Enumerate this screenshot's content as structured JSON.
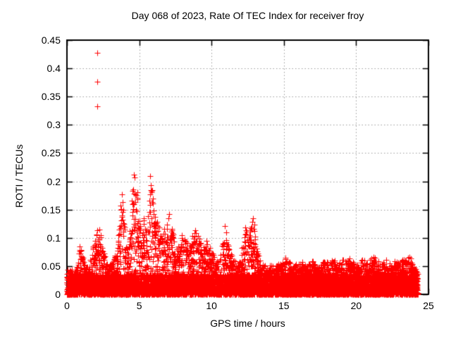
{
  "page": {
    "background": "#ffffff"
  },
  "chart_data": {
    "type": "scatter",
    "title": "Day 068 of 2023, Rate Of TEC Index for receiver froy",
    "xlabel": "GPS time / hours",
    "ylabel": "ROTI / TECUs",
    "xlim": [
      0,
      25
    ],
    "ylim": [
      0,
      0.45
    ],
    "x_ticks": [
      0,
      5,
      10,
      15,
      20,
      25
    ],
    "x_tick_labels": [
      "0",
      "5",
      "10",
      "15",
      "20",
      "25"
    ],
    "y_ticks": [
      0,
      0.05,
      0.1,
      0.15,
      0.2,
      0.25,
      0.3,
      0.35,
      0.4,
      0.45
    ],
    "y_tick_labels": [
      "0",
      "0.05",
      "0.1",
      "0.15",
      "0.2",
      "0.25",
      "0.3",
      "0.35",
      "0.4",
      "0.45"
    ],
    "grid": "dotted",
    "legend": "none",
    "marker": {
      "shape": "plus",
      "color": "#ff0000",
      "size": 9
    },
    "colors": {
      "marker": "#ff0000",
      "axis": "#000000",
      "grid": "#9a9a9a",
      "text": "#000000",
      "background": "#ffffff"
    },
    "outliers": [
      [
        2.1,
        0.428
      ],
      [
        2.1,
        0.377
      ],
      [
        2.1,
        0.333
      ]
    ],
    "time_range": [
      0,
      24.25
    ],
    "epoch_step_hours": 0.008,
    "base_band_max": 0.035,
    "points_seed": 20230068,
    "envelope": [
      [
        0.0,
        0.05
      ],
      [
        0.15,
        0.04
      ],
      [
        0.3,
        0.03
      ],
      [
        0.5,
        0.032
      ],
      [
        0.7,
        0.05
      ],
      [
        0.85,
        0.088
      ],
      [
        1.0,
        0.08
      ],
      [
        1.15,
        0.06
      ],
      [
        1.3,
        0.05
      ],
      [
        1.5,
        0.048
      ],
      [
        1.7,
        0.075
      ],
      [
        1.9,
        0.102
      ],
      [
        2.05,
        0.112
      ],
      [
        2.2,
        0.125
      ],
      [
        2.35,
        0.11
      ],
      [
        2.5,
        0.09
      ],
      [
        2.7,
        0.06
      ],
      [
        2.9,
        0.05
      ],
      [
        3.1,
        0.056
      ],
      [
        3.3,
        0.066
      ],
      [
        3.5,
        0.09
      ],
      [
        3.7,
        0.16
      ],
      [
        3.8,
        0.193
      ],
      [
        3.9,
        0.155
      ],
      [
        4.05,
        0.09
      ],
      [
        4.2,
        0.08
      ],
      [
        4.35,
        0.12
      ],
      [
        4.5,
        0.18
      ],
      [
        4.65,
        0.231
      ],
      [
        4.8,
        0.205
      ],
      [
        4.95,
        0.14
      ],
      [
        5.1,
        0.12
      ],
      [
        5.3,
        0.148
      ],
      [
        5.45,
        0.11
      ],
      [
        5.6,
        0.13
      ],
      [
        5.75,
        0.218
      ],
      [
        5.9,
        0.185
      ],
      [
        6.05,
        0.155
      ],
      [
        6.2,
        0.14
      ],
      [
        6.35,
        0.125
      ],
      [
        6.5,
        0.105
      ],
      [
        6.7,
        0.12
      ],
      [
        6.9,
        0.112
      ],
      [
        7.1,
        0.165
      ],
      [
        7.25,
        0.13
      ],
      [
        7.4,
        0.1
      ],
      [
        7.55,
        0.085
      ],
      [
        7.7,
        0.09
      ],
      [
        7.85,
        0.1
      ],
      [
        8.0,
        0.108
      ],
      [
        8.2,
        0.1
      ],
      [
        8.4,
        0.095
      ],
      [
        8.6,
        0.1
      ],
      [
        8.8,
        0.115
      ],
      [
        9.0,
        0.142
      ],
      [
        9.15,
        0.115
      ],
      [
        9.3,
        0.09
      ],
      [
        9.5,
        0.085
      ],
      [
        9.65,
        0.1
      ],
      [
        9.8,
        0.088
      ],
      [
        10.0,
        0.077
      ],
      [
        10.2,
        0.066
      ],
      [
        10.4,
        0.06
      ],
      [
        10.6,
        0.07
      ],
      [
        10.8,
        0.1
      ],
      [
        10.95,
        0.126
      ],
      [
        11.1,
        0.1
      ],
      [
        11.3,
        0.08
      ],
      [
        11.5,
        0.066
      ],
      [
        11.7,
        0.06
      ],
      [
        11.9,
        0.068
      ],
      [
        12.1,
        0.085
      ],
      [
        12.3,
        0.122
      ],
      [
        12.5,
        0.105
      ],
      [
        12.7,
        0.13
      ],
      [
        12.8,
        0.148
      ],
      [
        12.95,
        0.125
      ],
      [
        13.1,
        0.09
      ],
      [
        13.25,
        0.07
      ],
      [
        13.4,
        0.06
      ],
      [
        13.6,
        0.055
      ],
      [
        13.8,
        0.05
      ],
      [
        14.0,
        0.056
      ],
      [
        14.25,
        0.05
      ],
      [
        14.5,
        0.054
      ],
      [
        14.75,
        0.058
      ],
      [
        15.0,
        0.06
      ],
      [
        15.2,
        0.073
      ],
      [
        15.4,
        0.06
      ],
      [
        15.6,
        0.05
      ],
      [
        15.8,
        0.056
      ],
      [
        16.0,
        0.052
      ],
      [
        16.2,
        0.058
      ],
      [
        16.45,
        0.062
      ],
      [
        16.7,
        0.055
      ],
      [
        16.9,
        0.06
      ],
      [
        17.1,
        0.058
      ],
      [
        17.35,
        0.05
      ],
      [
        17.6,
        0.056
      ],
      [
        17.85,
        0.062
      ],
      [
        18.1,
        0.058
      ],
      [
        18.3,
        0.066
      ],
      [
        18.55,
        0.06
      ],
      [
        18.8,
        0.055
      ],
      [
        19.0,
        0.06
      ],
      [
        19.25,
        0.064
      ],
      [
        19.5,
        0.068
      ],
      [
        19.75,
        0.058
      ],
      [
        20.0,
        0.054
      ],
      [
        20.25,
        0.06
      ],
      [
        20.5,
        0.062
      ],
      [
        20.75,
        0.056
      ],
      [
        21.0,
        0.064
      ],
      [
        21.25,
        0.068
      ],
      [
        21.5,
        0.06
      ],
      [
        21.75,
        0.056
      ],
      [
        22.0,
        0.062
      ],
      [
        22.25,
        0.057
      ],
      [
        22.5,
        0.065
      ],
      [
        22.75,
        0.06
      ],
      [
        23.0,
        0.056
      ],
      [
        23.2,
        0.062
      ],
      [
        23.45,
        0.066
      ],
      [
        23.7,
        0.07
      ],
      [
        23.9,
        0.06
      ],
      [
        24.1,
        0.048
      ],
      [
        24.25,
        0.04
      ]
    ]
  }
}
